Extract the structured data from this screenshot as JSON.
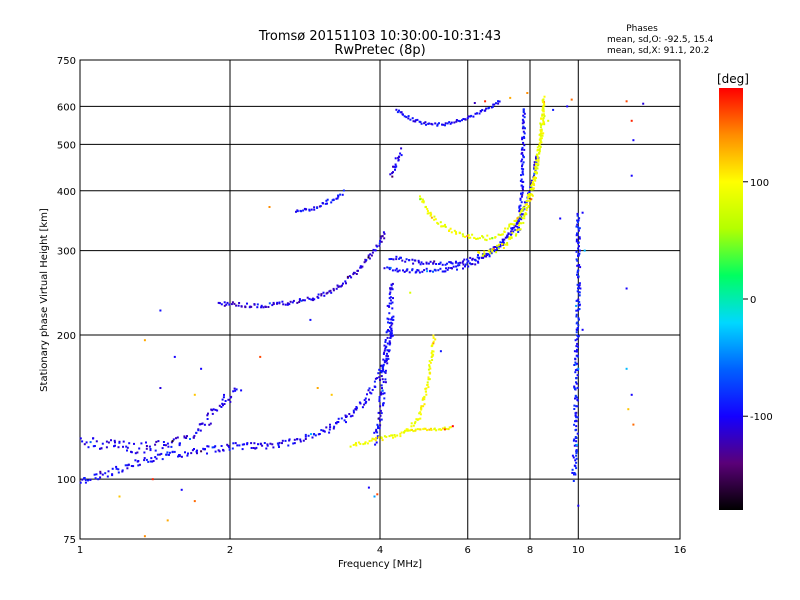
{
  "chart_data": {
    "type": "scatter",
    "title": "Tromsø 20151103 10:30:00-10:31:43",
    "subtitle": "RwPretec (8p)",
    "xlabel": "Frequency [MHz]",
    "ylabel": "Stationary phase Virtual Height [km]",
    "x_scale": "log",
    "y_scale": "log",
    "xlim": [
      1,
      16
    ],
    "ylim": [
      75,
      750
    ],
    "x_ticks": [
      1,
      2,
      4,
      6,
      8,
      10,
      16
    ],
    "x_tick_labels": [
      "1",
      "2",
      "4",
      "6",
      "8",
      "10",
      "16"
    ],
    "y_ticks": [
      75,
      100,
      200,
      300,
      400,
      500,
      600,
      750
    ],
    "y_tick_labels": [
      "75",
      "100",
      "200",
      "300",
      "400",
      "500",
      "600",
      "750"
    ],
    "grid": true,
    "phases": {
      "heading": "Phases",
      "line1": "mean, sd,O: -92.5, 15.4",
      "line2": "mean, sd,X:  91.1, 20.2"
    },
    "colorbar": {
      "label": "[deg]",
      "range": [
        -180,
        180
      ],
      "ticks": [
        100,
        0,
        -100
      ],
      "tick_labels": [
        "100",
        "0",
        "-100"
      ],
      "stops": [
        "#000000",
        "#5a0078",
        "#1400ff",
        "#0060ff",
        "#00d8ff",
        "#00ff60",
        "#b4ff00",
        "#ffff00",
        "#ff8c00",
        "#ff0000"
      ]
    },
    "traces": [
      {
        "mode": "O",
        "phase": -100,
        "spread": 0.035,
        "pts": [
          [
            1.0,
            99
          ],
          [
            1.05,
            100
          ],
          [
            1.1,
            102
          ],
          [
            1.2,
            105
          ],
          [
            1.3,
            108
          ],
          [
            1.4,
            110
          ],
          [
            1.5,
            112
          ],
          [
            1.6,
            113
          ],
          [
            1.7,
            114
          ],
          [
            1.8,
            115
          ],
          [
            1.9,
            116
          ],
          [
            2.0,
            117
          ],
          [
            2.2,
            117
          ],
          [
            2.4,
            118
          ],
          [
            2.6,
            119
          ],
          [
            2.8,
            121
          ],
          [
            3.0,
            124
          ],
          [
            3.2,
            128
          ],
          [
            3.4,
            133
          ],
          [
            3.6,
            140
          ],
          [
            3.8,
            150
          ],
          [
            4.0,
            165
          ],
          [
            4.1,
            180
          ],
          [
            4.2,
            200
          ],
          [
            4.25,
            220
          ]
        ]
      },
      {
        "mode": "O",
        "phase": -105,
        "spread": 0.05,
        "pts": [
          [
            1.0,
            120
          ],
          [
            1.15,
            118
          ],
          [
            1.3,
            116
          ],
          [
            1.5,
            118
          ],
          [
            1.7,
            125
          ],
          [
            1.9,
            140
          ],
          [
            2.0,
            150
          ],
          [
            2.1,
            152
          ]
        ]
      },
      {
        "mode": "O",
        "phase": -110,
        "spread": 0.02,
        "pts": [
          [
            1.9,
            233
          ],
          [
            2.0,
            232
          ],
          [
            2.2,
            230
          ],
          [
            2.4,
            231
          ],
          [
            2.6,
            233
          ],
          [
            2.8,
            236
          ],
          [
            3.0,
            240
          ],
          [
            3.2,
            248
          ],
          [
            3.4,
            258
          ],
          [
            3.6,
            272
          ],
          [
            3.8,
            290
          ],
          [
            4.0,
            310
          ],
          [
            4.1,
            330
          ]
        ]
      },
      {
        "mode": "O",
        "phase": -95,
        "spread": 0.02,
        "pts": [
          [
            2.7,
            360
          ],
          [
            3.0,
            370
          ],
          [
            3.2,
            382
          ],
          [
            3.4,
            400
          ]
        ]
      },
      {
        "mode": "O",
        "phase": -100,
        "spread": 0.04,
        "pts": [
          [
            3.9,
            120
          ],
          [
            4.0,
            135
          ],
          [
            4.05,
            150
          ],
          [
            4.1,
            170
          ],
          [
            4.15,
            200
          ],
          [
            4.2,
            230
          ],
          [
            4.25,
            260
          ]
        ]
      },
      {
        "mode": "O",
        "phase": -100,
        "spread": 0.02,
        "pts": [
          [
            4.1,
            275
          ],
          [
            4.4,
            272
          ],
          [
            4.8,
            272
          ],
          [
            5.2,
            273
          ],
          [
            5.6,
            275
          ],
          [
            6.0,
            280
          ],
          [
            6.4,
            288
          ],
          [
            6.8,
            300
          ],
          [
            7.2,
            318
          ],
          [
            7.6,
            345
          ],
          [
            7.9,
            380
          ],
          [
            8.1,
            420
          ],
          [
            8.3,
            480
          ]
        ]
      },
      {
        "mode": "O",
        "phase": -100,
        "spread": 0.02,
        "pts": [
          [
            4.2,
            290
          ],
          [
            4.8,
            283
          ],
          [
            5.4,
            282
          ],
          [
            6.0,
            286
          ],
          [
            6.6,
            296
          ],
          [
            7.2,
            320
          ],
          [
            7.6,
            350
          ]
        ]
      },
      {
        "mode": "O",
        "phase": -100,
        "spread": 0.015,
        "pts": [
          [
            4.3,
            590
          ],
          [
            4.6,
            565
          ],
          [
            5.0,
            550
          ],
          [
            5.4,
            550
          ],
          [
            5.8,
            560
          ],
          [
            6.2,
            575
          ],
          [
            6.6,
            595
          ],
          [
            7.0,
            620
          ]
        ]
      },
      {
        "mode": "O",
        "phase": -105,
        "spread": 0.04,
        "pts": [
          [
            4.2,
            430
          ],
          [
            4.3,
            450
          ],
          [
            4.35,
            470
          ],
          [
            4.4,
            490
          ]
        ]
      },
      {
        "mode": "O",
        "phase": -95,
        "spread": 0.02,
        "pts": [
          [
            7.6,
            330
          ],
          [
            7.7,
            400
          ],
          [
            7.75,
            500
          ],
          [
            7.8,
            600
          ]
        ]
      },
      {
        "mode": "O",
        "phase": -90,
        "spread": 0.03,
        "pts": [
          [
            9.8,
            100
          ],
          [
            9.9,
            130
          ],
          [
            9.9,
            180
          ],
          [
            10.0,
            230
          ],
          [
            10.0,
            300
          ],
          [
            10.0,
            360
          ]
        ]
      },
      {
        "mode": "X",
        "phase": 95,
        "spread": 0.02,
        "pts": [
          [
            3.5,
            118
          ],
          [
            3.8,
            120
          ],
          [
            4.1,
            122
          ],
          [
            4.4,
            124
          ],
          [
            4.6,
            128
          ],
          [
            4.8,
            135
          ],
          [
            4.9,
            145
          ],
          [
            5.0,
            160
          ],
          [
            5.1,
            185
          ],
          [
            5.15,
            200
          ]
        ]
      },
      {
        "mode": "X",
        "phase": 100,
        "spread": 0.01,
        "pts": [
          [
            4.5,
            126
          ],
          [
            4.8,
            127
          ],
          [
            5.2,
            127
          ],
          [
            5.6,
            128
          ]
        ]
      },
      {
        "mode": "X",
        "phase": 90,
        "spread": 0.02,
        "pts": [
          [
            4.8,
            390
          ],
          [
            5.0,
            360
          ],
          [
            5.3,
            340
          ],
          [
            5.6,
            330
          ],
          [
            6.0,
            322
          ],
          [
            6.5,
            318
          ],
          [
            7.0,
            325
          ],
          [
            7.5,
            345
          ],
          [
            7.9,
            380
          ],
          [
            8.2,
            430
          ],
          [
            8.4,
            500
          ],
          [
            8.5,
            560
          ],
          [
            8.55,
            620
          ]
        ]
      },
      {
        "mode": "X",
        "phase": 92,
        "spread": 0.025,
        "pts": [
          [
            6.3,
            295
          ],
          [
            6.8,
            300
          ],
          [
            7.3,
            315
          ],
          [
            7.8,
            350
          ],
          [
            8.1,
            400
          ],
          [
            8.3,
            470
          ],
          [
            8.45,
            550
          ],
          [
            8.55,
            630
          ]
        ]
      }
    ],
    "scatter": [
      [
        1.45,
        225,
        -95
      ],
      [
        1.35,
        195,
        130
      ],
      [
        1.55,
        180,
        -100
      ],
      [
        1.75,
        170,
        -100
      ],
      [
        1.7,
        150,
        120
      ],
      [
        1.45,
        155,
        -110
      ],
      [
        1.5,
        82,
        130
      ],
      [
        1.7,
        90,
        150
      ],
      [
        1.35,
        76,
        140
      ],
      [
        1.2,
        92,
        120
      ],
      [
        1.6,
        95,
        -100
      ],
      [
        1.4,
        100,
        170
      ],
      [
        2.3,
        180,
        160
      ],
      [
        2.9,
        215,
        -95
      ],
      [
        2.4,
        370,
        140
      ],
      [
        3.0,
        155,
        130
      ],
      [
        3.2,
        150,
        120
      ],
      [
        3.9,
        92,
        -40
      ],
      [
        3.95,
        93,
        160
      ],
      [
        3.8,
        96,
        -100
      ],
      [
        4.6,
        245,
        80
      ],
      [
        5.3,
        185,
        -90
      ],
      [
        5.4,
        127,
        160
      ],
      [
        5.6,
        129,
        180
      ],
      [
        6.5,
        615,
        170
      ],
      [
        6.2,
        610,
        -120
      ],
      [
        7.3,
        625,
        130
      ],
      [
        7.7,
        410,
        -95
      ],
      [
        7.9,
        640,
        140
      ],
      [
        8.7,
        560,
        80
      ],
      [
        8.9,
        590,
        -90
      ],
      [
        9.2,
        350,
        -100
      ],
      [
        9.5,
        600,
        -100
      ],
      [
        9.7,
        620,
        150
      ],
      [
        10.2,
        360,
        -100
      ],
      [
        10.3,
        300,
        -30
      ],
      [
        10.1,
        250,
        -100
      ],
      [
        10.2,
        205,
        -100
      ],
      [
        9.9,
        230,
        -40
      ],
      [
        10.0,
        170,
        -40
      ],
      [
        9.9,
        120,
        -100
      ],
      [
        10.0,
        88,
        -100
      ],
      [
        12.5,
        615,
        160
      ],
      [
        12.8,
        560,
        170
      ],
      [
        13.5,
        608,
        -110
      ],
      [
        12.9,
        510,
        -100
      ],
      [
        12.8,
        430,
        -100
      ],
      [
        12.5,
        250,
        -100
      ],
      [
        12.8,
        150,
        -100
      ],
      [
        12.6,
        140,
        120
      ],
      [
        12.9,
        130,
        150
      ],
      [
        12.5,
        170,
        -30
      ]
    ]
  }
}
